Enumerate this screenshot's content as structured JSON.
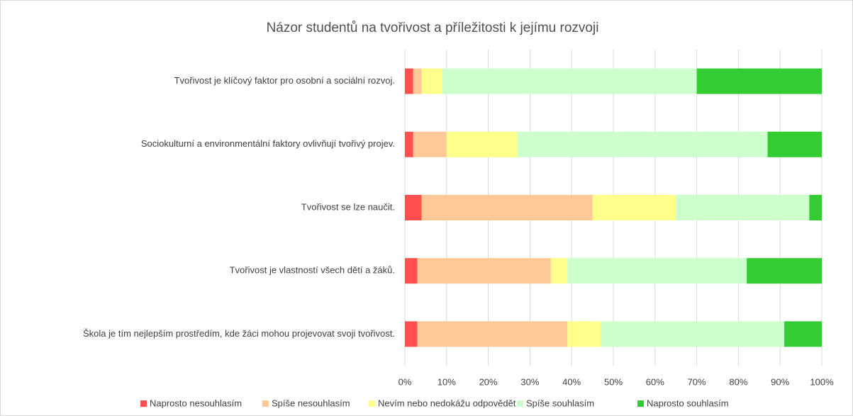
{
  "chart_data": {
    "type": "stacked-bar-horizontal",
    "title": "Názor studentů na tvořivost a příležitosti k jejímu rozvoji",
    "categories": [
      "Tvořivost je klíčový faktor pro osobní a sociální rozvoj.",
      "Sociokulturní a environmentální faktory ovlivňují tvořivý projev.",
      "Tvořivost se lze naučit.",
      "Tvořivost je vlastností všech dětí a žáků.",
      "Škola je tím nejlepším prostředím, kde žáci mohou projevovat svoji tvořivost."
    ],
    "series": [
      {
        "name": "Naprosto nesouhlasím",
        "color": "#ff4f4f",
        "values": [
          2,
          2,
          4,
          3,
          3
        ]
      },
      {
        "name": "Spíše nesouhlasím",
        "color": "#ffc896",
        "values": [
          2,
          8,
          41,
          32,
          36
        ]
      },
      {
        "name": "Nevím nebo nedokážu odpovědět",
        "color": "#ffff8c",
        "values": [
          5,
          17,
          20,
          4,
          8
        ]
      },
      {
        "name": "Spíše souhlasím",
        "color": "#ccffcc",
        "values": [
          61,
          60,
          32,
          43,
          44
        ]
      },
      {
        "name": "Naprosto souhlasím",
        "color": "#33cc33",
        "values": [
          30,
          13,
          3,
          18,
          9
        ]
      }
    ],
    "xlim": [
      0,
      100
    ],
    "xticks": [
      {
        "value": 0,
        "label": "0%"
      },
      {
        "value": 10,
        "label": "10%"
      },
      {
        "value": 20,
        "label": "20%"
      },
      {
        "value": 30,
        "label": "30%"
      },
      {
        "value": 40,
        "label": "40%"
      },
      {
        "value": 50,
        "label": "50%"
      },
      {
        "value": 60,
        "label": "60%"
      },
      {
        "value": 70,
        "label": "70%"
      },
      {
        "value": 80,
        "label": "80%"
      },
      {
        "value": 90,
        "label": "90%"
      },
      {
        "value": 100,
        "label": "100%"
      }
    ],
    "grid": true,
    "legend": "bottom"
  }
}
